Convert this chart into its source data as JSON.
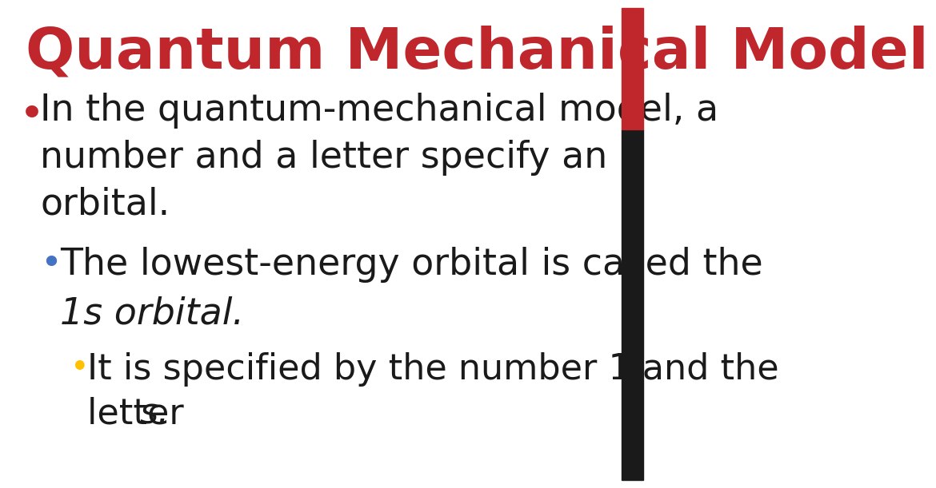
{
  "title": "Quantum Mechanical Model",
  "title_color": "#C0272D",
  "title_fontsize": 52,
  "title_font_weight": "bold",
  "background_color": "#FFFFFF",
  "sidebar_color_red": "#C0272D",
  "sidebar_color_black": "#1A1A1A",
  "bullet1_dot_color": "#C0272D",
  "bullet2_dot_color": "#4472C4",
  "bullet3_dot_color": "#FFC000",
  "bullet1_text_line1": "In the quantum-mechanical model, a",
  "bullet1_text_line2": "number and a letter specify an",
  "bullet1_text_line3": "orbital.",
  "bullet2_text_line1": "The lowest-energy orbital is called the",
  "bullet2_text_line2": "1s orbital.",
  "bullet3_text_line1": "It is specified by the number 1 and the",
  "bullet3_text_line2_plain": "letter ",
  "bullet3_text_line2_italic": "s.",
  "body_fontsize": 33,
  "body_color": "#1A1A1A"
}
